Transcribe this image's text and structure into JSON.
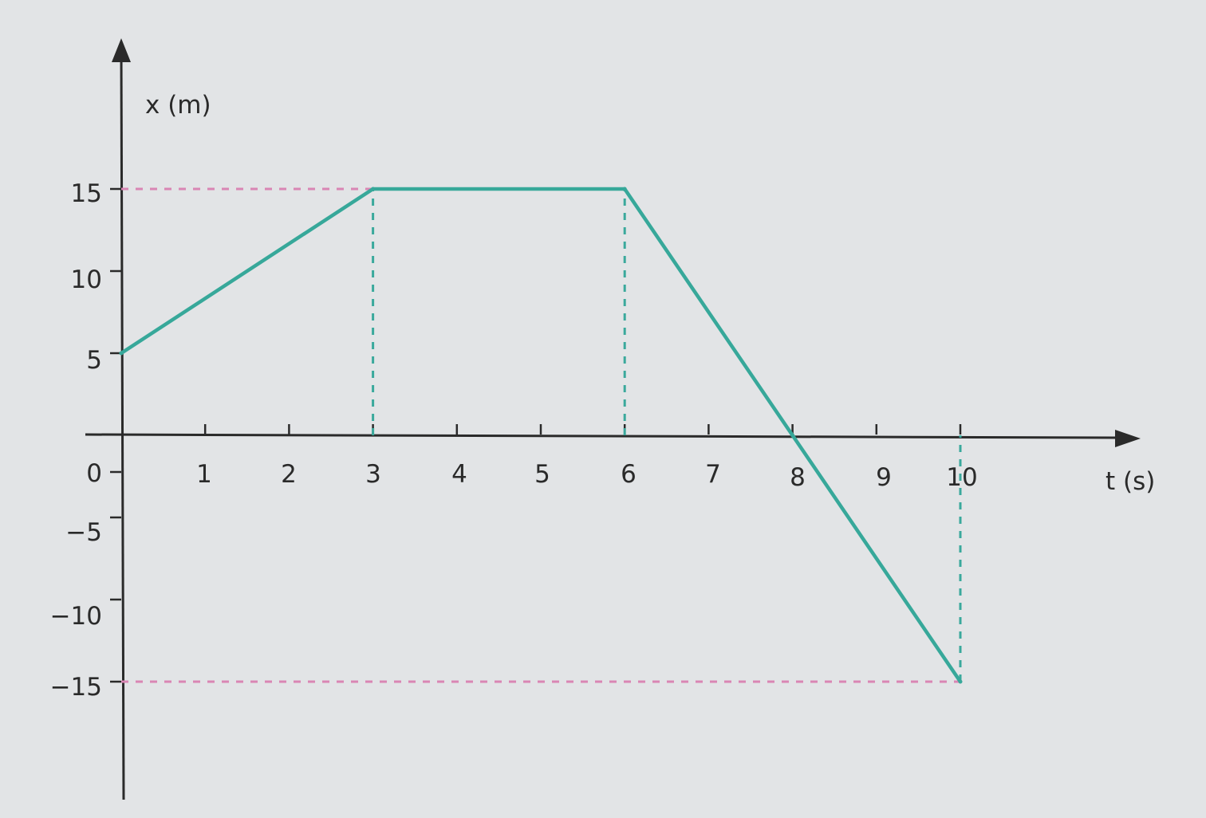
{
  "chart_data": {
    "type": "line",
    "title": "",
    "xlabel": "t (s)",
    "ylabel": "x (m)",
    "xlim": [
      0,
      11.5
    ],
    "ylim": [
      -15,
      15
    ],
    "x_ticks": [
      "1",
      "2",
      "3",
      "4",
      "5",
      "6",
      "7",
      "8",
      "9",
      "10"
    ],
    "y_ticks": [
      "15",
      "10",
      "5",
      "0",
      "−5",
      "−10",
      "−15"
    ],
    "series": [
      {
        "points": [
          {
            "x": 0,
            "y": 5
          },
          {
            "x": 3,
            "y": 15
          },
          {
            "x": 6,
            "y": 15
          },
          {
            "x": 8,
            "y": 0
          },
          {
            "x": 10,
            "y": -15
          }
        ]
      }
    ],
    "guides": [
      {
        "kind": "horizontal",
        "y": 15,
        "x_from": 0,
        "x_to": 3,
        "color": "#d986b4"
      },
      {
        "kind": "horizontal",
        "y": -15,
        "x_from": 0,
        "x_to": 10,
        "color": "#d986b4"
      },
      {
        "kind": "vertical",
        "x": 3,
        "y_from": 0,
        "y_to": 15,
        "color": "#3aa99c"
      },
      {
        "kind": "vertical",
        "x": 6,
        "y_from": 0,
        "y_to": 15,
        "color": "#3aa99c"
      },
      {
        "kind": "vertical",
        "x": 10,
        "y_from": -15,
        "y_to": 0,
        "color": "#3aa99c"
      }
    ],
    "grid": false,
    "line_color": "#37a89a",
    "axis_color": "#2a2a2a"
  }
}
